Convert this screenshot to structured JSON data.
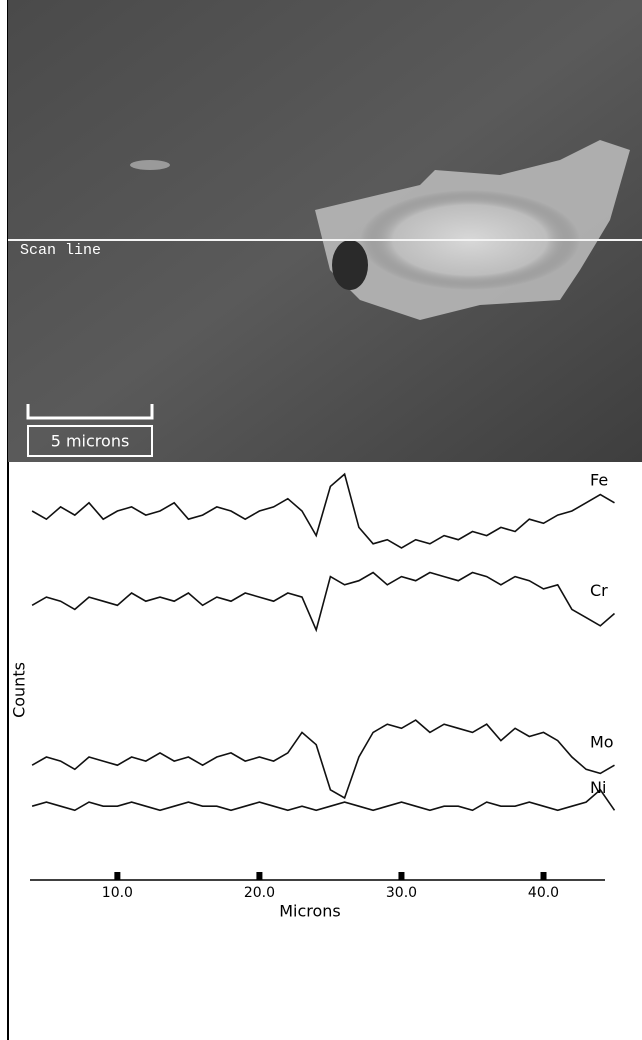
{
  "chart_data": {
    "type": "line",
    "annotations": [
      "Scan line",
      "5 microns"
    ],
    "x_label": "Microns",
    "y_label": "Counts",
    "x": [
      4,
      5,
      6,
      7,
      8,
      9,
      10,
      11,
      12,
      13,
      14,
      15,
      16,
      17,
      18,
      19,
      20,
      21,
      22,
      23,
      24,
      25,
      26,
      27,
      28,
      29,
      30,
      31,
      32,
      33,
      34,
      35,
      36,
      37,
      38,
      39,
      40,
      41,
      42,
      43,
      44,
      45
    ],
    "xlim": [
      2.3,
      46.3
    ],
    "xticks": [
      {
        "value": 10,
        "label": "10.0"
      },
      {
        "value": 20,
        "label": "20.0"
      },
      {
        "value": 30,
        "label": "30.0"
      },
      {
        "value": 40,
        "label": "40.0"
      }
    ],
    "ylim": [
      0,
      100
    ],
    "series": [
      {
        "name": "Fe",
        "color": "#111111",
        "values": [
          90,
          88,
          91,
          89,
          92,
          88,
          90,
          91,
          89,
          90,
          92,
          88,
          89,
          91,
          90,
          88,
          90,
          91,
          93,
          90,
          84,
          96,
          99,
          86,
          82,
          83,
          81,
          83,
          82,
          84,
          83,
          85,
          84,
          86,
          85,
          88,
          87,
          89,
          90,
          92,
          94,
          92
        ]
      },
      {
        "name": "Cr",
        "color": "#111111",
        "values": [
          67,
          69,
          68,
          66,
          69,
          68,
          67,
          70,
          68,
          69,
          68,
          70,
          67,
          69,
          68,
          70,
          69,
          68,
          70,
          69,
          61,
          74,
          72,
          73,
          75,
          72,
          74,
          73,
          75,
          74,
          73,
          75,
          74,
          72,
          74,
          73,
          71,
          72,
          66,
          64,
          62,
          65
        ]
      },
      {
        "name": "Mo",
        "color": "#111111",
        "values": [
          28,
          30,
          29,
          27,
          30,
          29,
          28,
          30,
          29,
          31,
          29,
          30,
          28,
          30,
          31,
          29,
          30,
          29,
          31,
          36,
          33,
          22,
          20,
          30,
          36,
          38,
          37,
          39,
          36,
          38,
          37,
          36,
          38,
          34,
          37,
          35,
          36,
          34,
          30,
          27,
          26,
          28
        ]
      },
      {
        "name": "Ni",
        "color": "#111111",
        "values": [
          18,
          19,
          18,
          17,
          19,
          18,
          18,
          19,
          18,
          17,
          18,
          19,
          18,
          18,
          17,
          18,
          19,
          18,
          17,
          18,
          17,
          18,
          19,
          18,
          17,
          18,
          19,
          18,
          17,
          18,
          18,
          17,
          19,
          18,
          18,
          19,
          18,
          17,
          18,
          19,
          22,
          17
        ]
      }
    ]
  }
}
